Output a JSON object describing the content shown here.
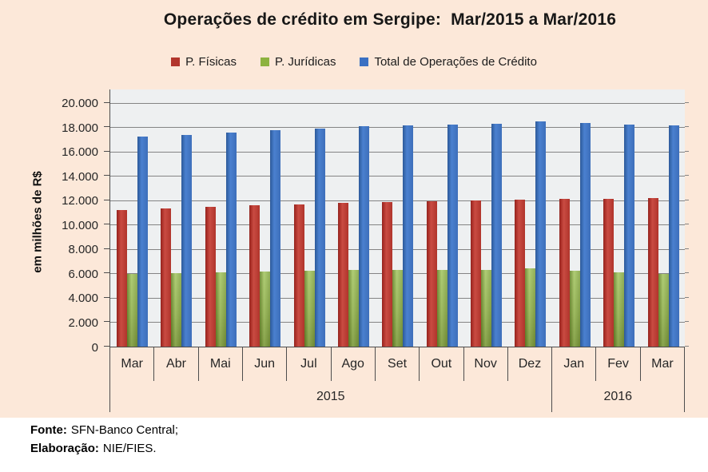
{
  "title": "Operações de crédito em Sergipe:  Mar/2015 a Mar/2016",
  "colors": {
    "chart_background": "#fce8d9",
    "plot_background": "#eef0f1",
    "gridline": "#848484",
    "axis_line": "#4d4d4d",
    "series_pfisicas": "#b2352c",
    "series_pjuridicas": "#8db23f",
    "series_total": "#3a70c2"
  },
  "y_axis": {
    "label": "em milhões de R$",
    "tick_labels": [
      "20.000",
      "18.000",
      "16.000",
      "14.000",
      "12.000",
      "10.000",
      "8.000",
      "6.000",
      "4.000",
      "2.000",
      "0"
    ]
  },
  "x_axis": {
    "months": [
      "Mar",
      "Abr",
      "Mai",
      "Jun",
      "Jul",
      "Ago",
      "Set",
      "Out",
      "Nov",
      "Dez",
      "Jan",
      "Fev",
      "Mar"
    ],
    "year_groups": [
      {
        "label": "2015",
        "span": 10
      },
      {
        "label": "2016",
        "span": 3
      }
    ]
  },
  "chart_data": {
    "type": "bar",
    "title": "Operações de crédito em Sergipe: Mar/2015 a Mar/2016",
    "ylabel": "em milhões de R$",
    "ylim": [
      0,
      20000
    ],
    "y_tick_step": 2000,
    "grid": true,
    "legend_position": "top",
    "categories": [
      "Mar",
      "Abr",
      "Mai",
      "Jun",
      "Jul",
      "Ago",
      "Set",
      "Out",
      "Nov",
      "Dez",
      "Jan",
      "Fev",
      "Mar"
    ],
    "category_years": [
      "2015",
      "2015",
      "2015",
      "2015",
      "2015",
      "2015",
      "2015",
      "2015",
      "2015",
      "2015",
      "2016",
      "2016",
      "2016"
    ],
    "series": [
      {
        "name": "P. Físicas",
        "color": "#b2352c",
        "values": [
          11220,
          11340,
          11450,
          11570,
          11660,
          11760,
          11830,
          11900,
          11990,
          12060,
          12120,
          12140,
          12150
        ]
      },
      {
        "name": "P. Jurídicas",
        "color": "#8db23f",
        "values": [
          5980,
          6040,
          6090,
          6140,
          6210,
          6280,
          6300,
          6280,
          6280,
          6420,
          6230,
          6090,
          5990
        ]
      },
      {
        "name": "Total de Operações de Crédito",
        "color": "#3a70c2",
        "values": [
          17200,
          17380,
          17540,
          17710,
          17870,
          18040,
          18130,
          18180,
          18270,
          18480,
          18350,
          18230,
          18140
        ]
      }
    ]
  },
  "footer": {
    "source_label": "Fonte:",
    "source_value": "SFN-Banco Central;",
    "elaboration_label": "Elaboração:",
    "elaboration_value": "NIE/FIES."
  }
}
